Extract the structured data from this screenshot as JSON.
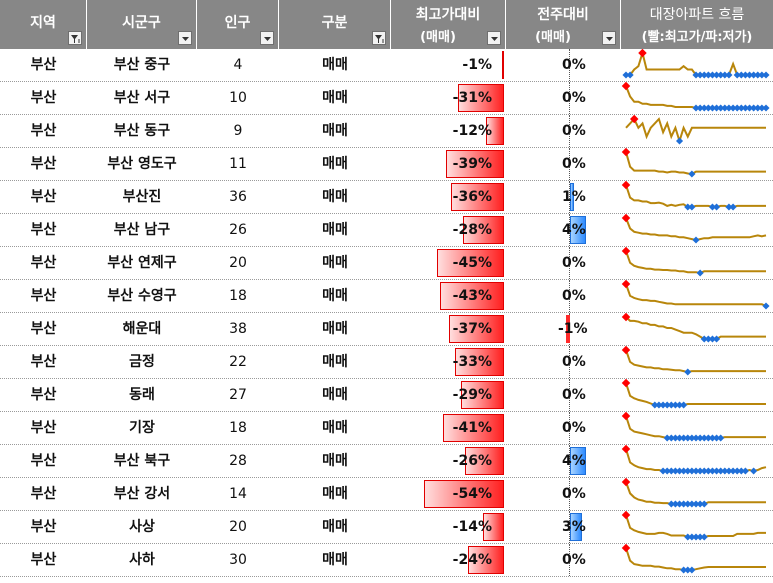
{
  "headers": {
    "region": "지역",
    "city": "시군구",
    "population": "인구",
    "type": "구분",
    "max_ratio": "최고가대비",
    "max_ratio_sub": "(매매)",
    "weekly": "전주대비",
    "weekly_sub": "(매매)",
    "flow": "대장아파트 흐름",
    "flow_sub": "(빨:최고가/파:저가)"
  },
  "colors": {
    "header_bg": "#878787",
    "bar_red": "#ff2020",
    "bar_blue": "#2e8bff",
    "spark_line": "#b8860b",
    "spark_max": "#ff0000",
    "spark_min": "#1f6fd8"
  },
  "rows": [
    {
      "region": "부산",
      "city": "부산 중구",
      "population": "4",
      "type": "매매",
      "max_ratio": "-1%",
      "max_val": -1,
      "weekly": "0%",
      "weekly_val": 0
    },
    {
      "region": "부산",
      "city": "부산 서구",
      "population": "10",
      "type": "매매",
      "max_ratio": "-31%",
      "max_val": -31,
      "weekly": "0%",
      "weekly_val": 0
    },
    {
      "region": "부산",
      "city": "부산 동구",
      "population": "9",
      "type": "매매",
      "max_ratio": "-12%",
      "max_val": -12,
      "weekly": "0%",
      "weekly_val": 0
    },
    {
      "region": "부산",
      "city": "부산 영도구",
      "population": "11",
      "type": "매매",
      "max_ratio": "-39%",
      "max_val": -39,
      "weekly": "0%",
      "weekly_val": 0
    },
    {
      "region": "부산",
      "city": "부산진",
      "population": "36",
      "type": "매매",
      "max_ratio": "-36%",
      "max_val": -36,
      "weekly": "1%",
      "weekly_val": 1
    },
    {
      "region": "부산",
      "city": "부산 남구",
      "population": "26",
      "type": "매매",
      "max_ratio": "-28%",
      "max_val": -28,
      "weekly": "4%",
      "weekly_val": 4
    },
    {
      "region": "부산",
      "city": "부산 연제구",
      "population": "20",
      "type": "매매",
      "max_ratio": "-45%",
      "max_val": -45,
      "weekly": "0%",
      "weekly_val": 0
    },
    {
      "region": "부산",
      "city": "부산 수영구",
      "population": "18",
      "type": "매매",
      "max_ratio": "-43%",
      "max_val": -43,
      "weekly": "0%",
      "weekly_val": 0
    },
    {
      "region": "부산",
      "city": "해운대",
      "population": "38",
      "type": "매매",
      "max_ratio": "-37%",
      "max_val": -37,
      "weekly": "-1%",
      "weekly_val": -1
    },
    {
      "region": "부산",
      "city": "금정",
      "population": "22",
      "type": "매매",
      "max_ratio": "-33%",
      "max_val": -33,
      "weekly": "0%",
      "weekly_val": 0
    },
    {
      "region": "부산",
      "city": "동래",
      "population": "27",
      "type": "매매",
      "max_ratio": "-29%",
      "max_val": -29,
      "weekly": "0%",
      "weekly_val": 0
    },
    {
      "region": "부산",
      "city": "기장",
      "population": "18",
      "type": "매매",
      "max_ratio": "-41%",
      "max_val": -41,
      "weekly": "0%",
      "weekly_val": 0
    },
    {
      "region": "부산",
      "city": "부산 북구",
      "population": "28",
      "type": "매매",
      "max_ratio": "-26%",
      "max_val": -26,
      "weekly": "4%",
      "weekly_val": 4
    },
    {
      "region": "부산",
      "city": "부산 강서",
      "population": "14",
      "type": "매매",
      "max_ratio": "-54%",
      "max_val": -54,
      "weekly": "0%",
      "weekly_val": 0
    },
    {
      "region": "부산",
      "city": "사상",
      "population": "20",
      "type": "매매",
      "max_ratio": "-14%",
      "max_val": -14,
      "weekly": "3%",
      "weekly_val": 3
    },
    {
      "region": "부산",
      "city": "사하",
      "population": "30",
      "type": "매매",
      "max_ratio": "-24%",
      "max_val": -24,
      "weekly": "0%",
      "weekly_val": 0
    }
  ],
  "sparklines": [
    [
      60,
      60,
      55,
      52,
      40,
      55,
      55,
      55,
      55,
      55,
      55,
      55,
      55,
      55,
      52,
      55,
      55,
      60,
      60,
      60,
      60,
      60,
      60,
      60,
      60,
      60,
      50,
      60,
      60,
      60,
      60,
      60,
      60,
      60,
      60
    ],
    [
      15,
      25,
      30,
      30,
      32,
      32,
      33,
      33,
      33,
      33,
      34,
      34,
      35,
      35,
      35,
      35,
      35,
      36,
      36,
      36,
      36,
      36,
      36,
      36,
      36,
      36,
      36,
      36,
      36,
      36,
      36,
      36,
      36,
      36,
      36
    ],
    [
      30,
      28,
      26,
      30,
      28,
      34,
      30,
      28,
      26,
      32,
      28,
      34,
      30,
      36,
      30,
      34,
      30,
      30,
      30,
      30,
      30,
      30,
      30,
      30,
      30,
      30,
      30,
      30,
      30,
      30,
      30,
      30,
      30,
      30,
      30
    ],
    [
      10,
      40,
      48,
      48,
      48,
      48,
      48,
      48,
      50,
      50,
      52,
      50,
      50,
      52,
      52,
      54,
      55,
      50,
      50,
      50,
      50,
      50,
      50,
      50,
      50,
      50,
      50,
      50,
      50,
      50,
      50,
      50,
      50,
      50,
      50
    ],
    [
      12,
      35,
      40,
      40,
      42,
      42,
      45,
      45,
      44,
      46,
      50,
      48,
      50,
      48,
      47,
      52,
      52,
      50,
      50,
      50,
      50,
      52,
      52,
      50,
      50,
      52,
      52,
      50,
      50,
      50,
      50,
      50,
      50,
      50,
      50
    ],
    [
      12,
      35,
      42,
      44,
      46,
      46,
      48,
      48,
      50,
      50,
      50,
      52,
      52,
      54,
      54,
      56,
      58,
      60,
      58,
      56,
      56,
      54,
      54,
      54,
      54,
      54,
      54,
      54,
      54,
      54,
      54,
      52,
      50,
      52,
      50
    ],
    [
      10,
      38,
      45,
      48,
      50,
      52,
      52,
      54,
      54,
      55,
      55,
      56,
      56,
      58,
      58,
      60,
      60,
      60,
      62,
      58,
      58,
      58,
      58,
      58,
      58,
      58,
      58,
      58,
      58,
      58,
      58,
      58,
      58,
      58,
      58
    ],
    [
      12,
      40,
      45,
      48,
      50,
      50,
      52,
      52,
      54,
      56,
      58,
      58,
      60,
      60,
      60,
      60,
      60,
      60,
      60,
      60,
      60,
      60,
      60,
      60,
      60,
      60,
      60,
      60,
      60,
      60,
      60,
      60,
      60,
      60,
      64
    ],
    [
      30,
      35,
      35,
      36,
      38,
      38,
      40,
      40,
      42,
      42,
      44,
      44,
      46,
      48,
      50,
      50,
      50,
      52,
      55,
      58,
      58,
      58,
      58,
      55,
      55,
      55,
      55,
      55,
      55,
      55,
      55,
      55,
      55,
      55,
      55
    ],
    [
      12,
      38,
      44,
      46,
      48,
      50,
      50,
      52,
      52,
      54,
      54,
      55,
      56,
      56,
      58,
      60,
      58,
      58,
      58,
      58,
      58,
      58,
      58,
      58,
      58,
      58,
      58,
      58,
      58,
      58,
      58,
      58,
      58,
      58,
      58
    ],
    [
      15,
      40,
      45,
      48,
      50,
      52,
      55,
      58,
      58,
      58,
      58,
      58,
      58,
      58,
      58,
      56,
      56,
      56,
      56,
      56,
      56,
      56,
      56,
      56,
      56,
      56,
      56,
      56,
      56,
      56,
      56,
      56,
      56,
      56,
      56
    ],
    [
      10,
      38,
      44,
      46,
      48,
      50,
      52,
      54,
      54,
      56,
      58,
      58,
      58,
      58,
      58,
      58,
      58,
      58,
      58,
      58,
      58,
      58,
      58,
      58,
      56,
      56,
      56,
      56,
      56,
      56,
      56,
      56,
      56,
      56,
      56
    ],
    [
      12,
      40,
      46,
      50,
      52,
      54,
      54,
      56,
      56,
      58,
      58,
      58,
      58,
      58,
      58,
      58,
      58,
      58,
      58,
      58,
      58,
      58,
      58,
      58,
      58,
      58,
      58,
      58,
      58,
      58,
      56,
      58,
      56,
      52,
      50
    ],
    [
      10,
      36,
      45,
      50,
      52,
      55,
      55,
      57,
      57,
      58,
      58,
      60,
      60,
      60,
      60,
      60,
      60,
      60,
      60,
      60,
      56,
      56,
      56,
      56,
      56,
      56,
      56,
      56,
      56,
      56,
      56,
      56,
      56,
      56,
      56
    ],
    [
      15,
      40,
      45,
      48,
      50,
      52,
      52,
      52,
      50,
      50,
      52,
      55,
      55,
      55,
      55,
      58,
      58,
      58,
      58,
      58,
      56,
      56,
      56,
      56,
      56,
      56,
      56,
      52,
      52,
      52,
      52,
      52,
      50,
      50,
      50
    ],
    [
      10,
      40,
      48,
      50,
      52,
      52,
      52,
      54,
      54,
      56,
      58,
      58,
      60,
      60,
      62,
      62,
      62,
      60,
      58,
      56,
      55,
      55,
      55,
      55,
      55,
      55,
      55,
      55,
      55,
      55,
      55,
      55,
      55,
      55,
      55
    ]
  ]
}
